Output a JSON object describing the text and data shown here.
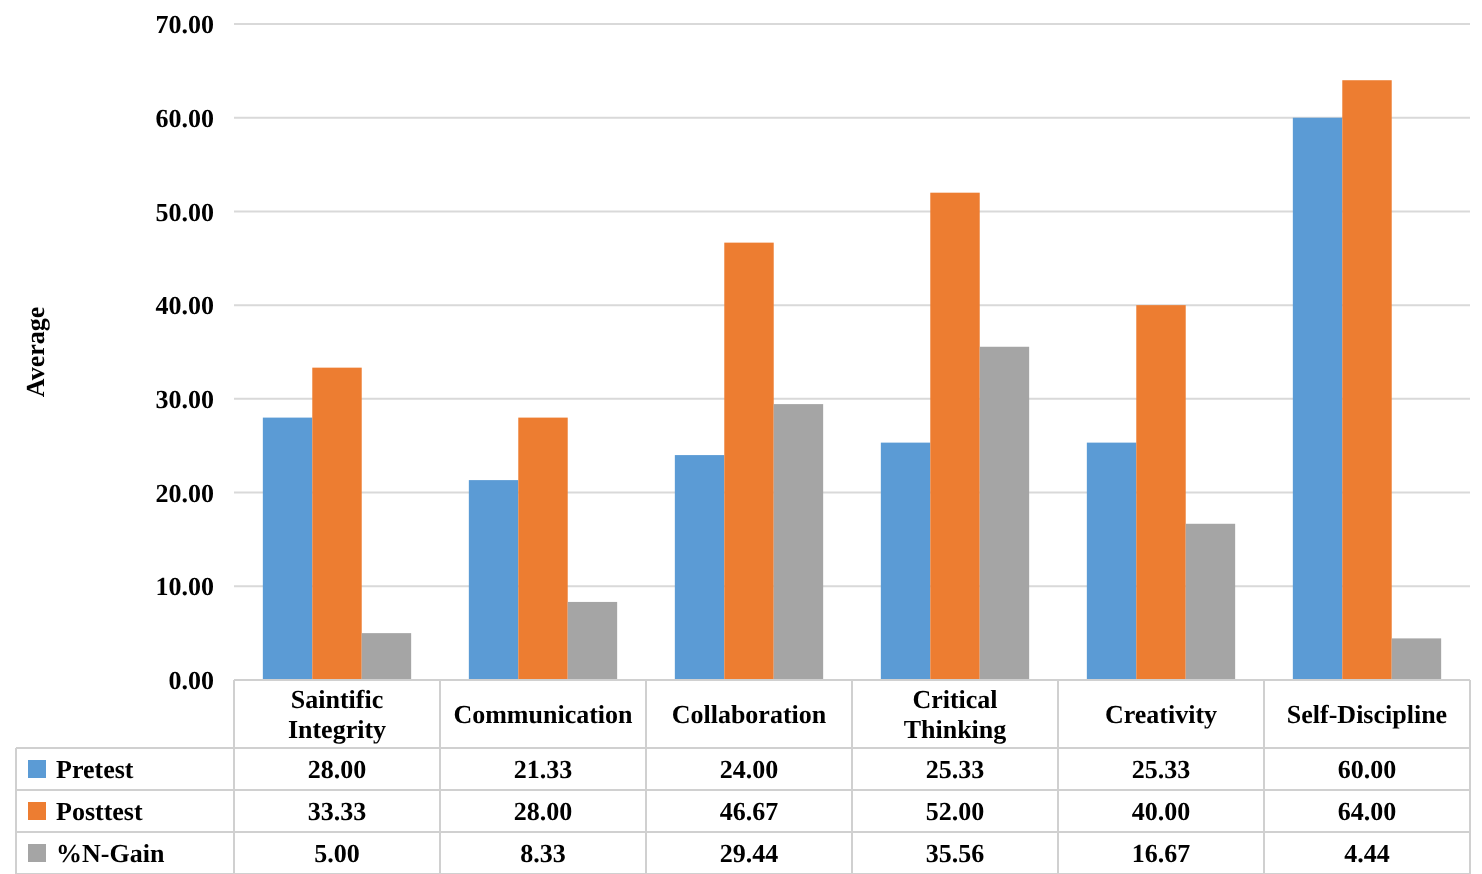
{
  "chart_data": {
    "type": "bar",
    "ylabel": "Average",
    "categories": [
      "Saintific Integrity",
      "Communication",
      "Collaboration",
      "Critical Thinking",
      "Creativity",
      "Self-Discipline"
    ],
    "series": [
      {
        "name": "Pretest",
        "color": "#5b9bd5",
        "values": [
          28.0,
          21.33,
          24.0,
          25.33,
          25.33,
          60.0
        ],
        "value_labels": [
          "28.00",
          "21.33",
          "24.00",
          "25.33",
          "25.33",
          "60.00"
        ]
      },
      {
        "name": "Posttest",
        "color": "#ed7d31",
        "values": [
          33.33,
          28.0,
          46.67,
          52.0,
          40.0,
          64.0
        ],
        "value_labels": [
          "33.33",
          "28.00",
          "46.67",
          "52.00",
          "40.00",
          "64.00"
        ]
      },
      {
        "name": "%N-Gain",
        "color": "#a5a5a5",
        "values": [
          5.0,
          8.33,
          29.44,
          35.56,
          16.67,
          4.44
        ],
        "value_labels": [
          "5.00",
          "8.33",
          "29.44",
          "35.56",
          "16.67",
          "4.44"
        ]
      }
    ],
    "ylim": [
      0,
      70
    ],
    "yticks": [
      {
        "value": 0,
        "label": "0.00"
      },
      {
        "value": 10,
        "label": "10.00"
      },
      {
        "value": 20,
        "label": "20.00"
      },
      {
        "value": 30,
        "label": "30.00"
      },
      {
        "value": 40,
        "label": "40.00"
      },
      {
        "value": 50,
        "label": "50.00"
      },
      {
        "value": 60,
        "label": "60.00"
      },
      {
        "value": 70,
        "label": "70.00"
      }
    ],
    "grid": "y",
    "legend": "bottom"
  }
}
